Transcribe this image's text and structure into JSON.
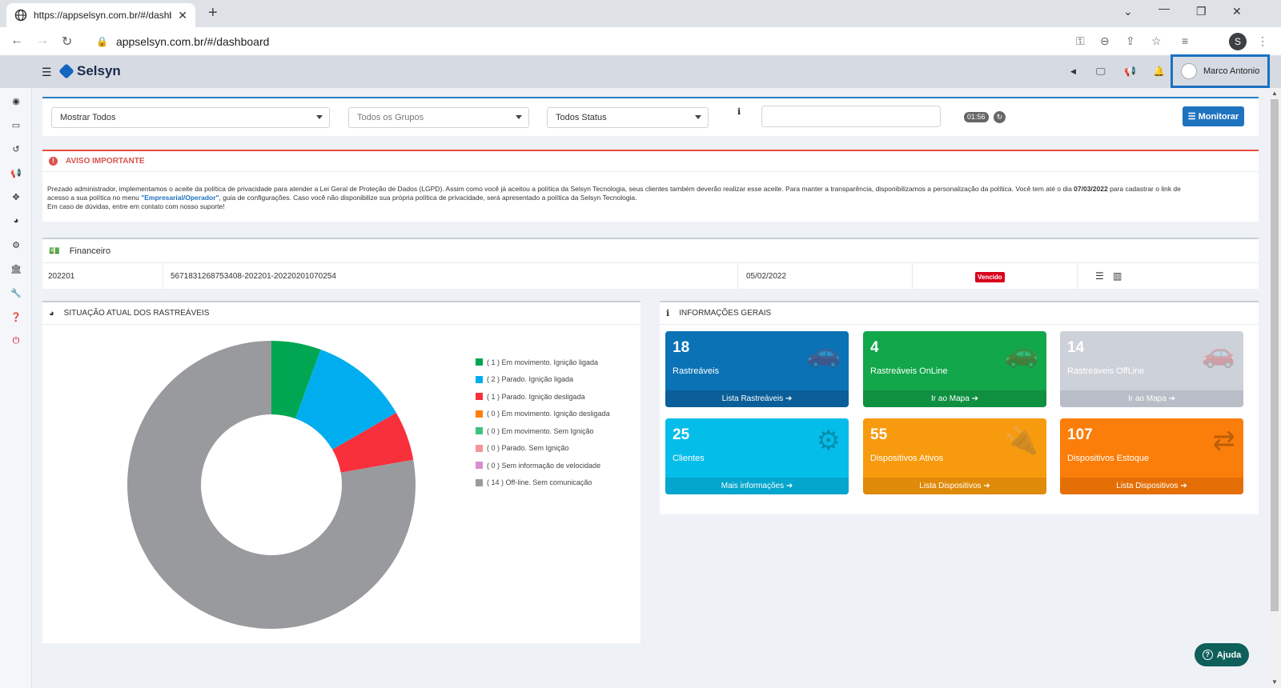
{
  "browser": {
    "tab_title": "https://appselsyn.com.br/#/dashb",
    "url": "appselsyn.com.br/#/dashboard",
    "profile_initial": "S"
  },
  "app": {
    "brand": "Selsyn",
    "user_name": "Marco Antonio"
  },
  "filters": {
    "show": "Mostrar Todos",
    "groups": "Todos os Grupos",
    "status": "Todos Status",
    "search_value": "",
    "timer": "01:56",
    "monitor_label": "Monitorar"
  },
  "alert": {
    "title": "AVISO IMPORTANTE",
    "line1_a": "Prezado administrador, implementamos o aceite da política de privacidade para atender a Lei Geral de Proteção de Dados (LGPD). Assim como você já aceitou a política da Selsyn Tecnologia, seus clientes também deverão realizar esse aceite. Para manter a transparência, disponibilizamos a personalização da política. Você tem até o dia ",
    "deadline": "07/03/2022",
    "line1_b": " para cadastrar o link de",
    "line2_a": "acesso a sua política no menu ",
    "menu_link": "\"Empresarial/Operador\"",
    "line2_b": ", guia de configurações. Caso você não disponibilize sua própria política de privacidade, será apresentado a política da Selsyn Tecnologia.",
    "line3": "Em caso de dúvidas, entre em contato com nosso suporte!"
  },
  "finance": {
    "title": "Financeiro",
    "period": "202201",
    "code": "5671831268753408-202201-20220201070254",
    "due_date": "05/02/2022",
    "status": "Vencido"
  },
  "status_panel": {
    "title": "SITUAÇÃO ATUAL DOS RASTREÁVEIS"
  },
  "info_panel": {
    "title": "INFORMAÇÕES GERAIS"
  },
  "tiles": [
    {
      "value": "18",
      "label": "Rastreáveis",
      "link": "Lista Rastreáveis",
      "color": "#0b72b5",
      "foot": "#0a5f98",
      "icon": "car-icon"
    },
    {
      "value": "4",
      "label": "Rastreáveis OnLine",
      "link": "Ir ao Mapa",
      "color": "#11a74a",
      "foot": "#0f8f40",
      "icon": "car-icon"
    },
    {
      "value": "14",
      "label": "Rastreáveis OffLine",
      "link": "Ir ao Mapa",
      "color": "#cdd1d9",
      "foot": "#b8bdc7",
      "icon": "car-icon"
    },
    {
      "value": "25",
      "label": "Clientes",
      "link": "Mais informações",
      "color": "#05bde9",
      "foot": "#04a6cd",
      "icon": "gears-icon"
    },
    {
      "value": "55",
      "label": "Dispositivos Ativos",
      "link": "Lista Dispositivos",
      "color": "#f79a0e",
      "foot": "#e08a0a",
      "icon": "plug-icon"
    },
    {
      "value": "107",
      "label": "Dispositivos Estoque",
      "link": "Lista Dispositivos",
      "color": "#fb7d0a",
      "foot": "#e46f07",
      "icon": "retweet-icon"
    }
  ],
  "chart_data": {
    "type": "pie",
    "title": "",
    "donut": true,
    "legend_position": "right",
    "categories": [
      "( 1 ) Em movimento. Ignição ligada",
      "( 2 ) Parado. Ignição ligada",
      "( 1 ) Parado. Ignição desligada",
      "( 0 ) Em movimento. Ignição desligada",
      "( 0 ) Em movimento. Sem Ignição",
      "( 0 ) Parado. Sem Ignição",
      "( 0 ) Sem informação de velocidade",
      "( 14 ) Off-line. Sem comunicação"
    ],
    "values": [
      1,
      2,
      1,
      0,
      0,
      0,
      0,
      14
    ],
    "colors": [
      "#00a651",
      "#00aeef",
      "#f7303c",
      "#ff7f0e",
      "#3fc380",
      "#f4949c",
      "#d98fd0",
      "#999a9d"
    ]
  },
  "help": {
    "label": "Ajuda"
  }
}
